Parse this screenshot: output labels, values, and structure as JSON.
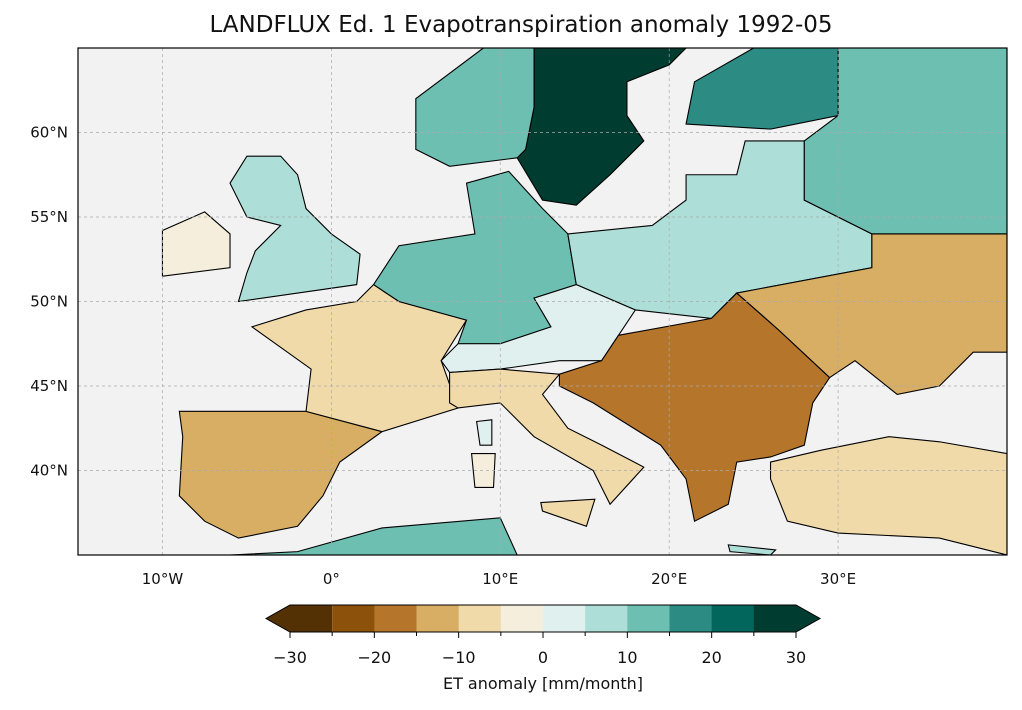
{
  "title": "LANDFLUX Ed. 1 Evapotranspiration anomaly 1992-05",
  "map": {
    "extent": {
      "lon": [
        -15,
        40
      ],
      "lat": [
        35,
        65
      ]
    },
    "x_ticks": [
      {
        "lon": -10,
        "label": "10°W"
      },
      {
        "lon": 0,
        "label": "0°"
      },
      {
        "lon": 10,
        "label": "10°E"
      },
      {
        "lon": 20,
        "label": "20°E"
      },
      {
        "lon": 30,
        "label": "30°E"
      }
    ],
    "y_ticks": [
      {
        "lat": 60,
        "label": "60°N"
      },
      {
        "lat": 55,
        "label": "55°N"
      },
      {
        "lat": 50,
        "label": "50°N"
      },
      {
        "lat": 45,
        "label": "45°N"
      },
      {
        "lat": 40,
        "label": "40°N"
      }
    ],
    "ocean_color": "#f2f2f2",
    "regions": [
      {
        "name": "iberia",
        "value": -15,
        "poly": [
          [
            -9,
            43.5
          ],
          [
            -1.5,
            43.5
          ],
          [
            3,
            42.3
          ],
          [
            0.5,
            40.5
          ],
          [
            -0.5,
            38.5
          ],
          [
            -2,
            36.7
          ],
          [
            -5.5,
            36
          ],
          [
            -7.5,
            37
          ],
          [
            -9,
            38.5
          ],
          [
            -8.8,
            42
          ]
        ]
      },
      {
        "name": "france",
        "value": -8,
        "poly": [
          [
            -1.5,
            43.5
          ],
          [
            3,
            42.3
          ],
          [
            7.5,
            43.7
          ],
          [
            6.5,
            46.5
          ],
          [
            8,
            48.9
          ],
          [
            4,
            50
          ],
          [
            2.5,
            51
          ],
          [
            1.5,
            50
          ],
          [
            -1.5,
            49.5
          ],
          [
            -4.7,
            48.5
          ],
          [
            -1.2,
            46
          ]
        ]
      },
      {
        "name": "britain",
        "value": 8,
        "poly": [
          [
            -5.5,
            50
          ],
          [
            1.5,
            51
          ],
          [
            1.7,
            52.8
          ],
          [
            0,
            54
          ],
          [
            -1.5,
            55.5
          ],
          [
            -2,
            57.5
          ],
          [
            -3,
            58.6
          ],
          [
            -5,
            58.6
          ],
          [
            -6,
            57
          ],
          [
            -5,
            55
          ],
          [
            -3,
            54.5
          ],
          [
            -4.5,
            53
          ],
          [
            -5,
            51.7
          ]
        ]
      },
      {
        "name": "ireland",
        "value": -4,
        "poly": [
          [
            -10,
            51.5
          ],
          [
            -6,
            52
          ],
          [
            -6,
            54
          ],
          [
            -7.5,
            55.3
          ],
          [
            -10,
            54.2
          ]
        ]
      },
      {
        "name": "central-europe",
        "value": 12,
        "poly": [
          [
            2.5,
            51
          ],
          [
            4,
            53.3
          ],
          [
            8.5,
            54
          ],
          [
            8,
            57
          ],
          [
            10.5,
            57.7
          ],
          [
            12.5,
            55.5
          ],
          [
            14,
            54
          ],
          [
            14.5,
            51
          ],
          [
            12,
            50.2
          ],
          [
            13,
            48.5
          ],
          [
            10,
            47.5
          ],
          [
            7.5,
            47.5
          ],
          [
            8,
            48.9
          ],
          [
            4,
            50
          ]
        ]
      },
      {
        "name": "poland-baltics",
        "value": 5,
        "poly": [
          [
            14,
            54
          ],
          [
            19,
            54.5
          ],
          [
            21,
            56
          ],
          [
            21,
            57.5
          ],
          [
            24,
            57.5
          ],
          [
            24.5,
            59.5
          ],
          [
            28,
            59.5
          ],
          [
            28,
            56
          ],
          [
            32,
            54
          ],
          [
            32,
            52
          ],
          [
            24,
            50.5
          ],
          [
            22.5,
            49
          ],
          [
            18,
            49.5
          ],
          [
            14.5,
            51
          ]
        ]
      },
      {
        "name": "alps",
        "value": 2,
        "poly": [
          [
            12,
            50.2
          ],
          [
            14.5,
            51
          ],
          [
            18,
            49.5
          ],
          [
            17,
            48
          ],
          [
            16,
            46.5
          ],
          [
            13.5,
            46.5
          ],
          [
            10,
            46
          ],
          [
            7,
            45.8
          ],
          [
            6.5,
            46.5
          ],
          [
            7.5,
            47.5
          ],
          [
            10,
            47.5
          ],
          [
            13,
            48.5
          ]
        ]
      },
      {
        "name": "italy",
        "value": -10,
        "poly": [
          [
            7,
            44
          ],
          [
            7.5,
            43.7
          ],
          [
            10,
            44
          ],
          [
            12,
            42
          ],
          [
            15.5,
            40
          ],
          [
            16.5,
            38
          ],
          [
            18.5,
            40.2
          ],
          [
            16,
            41.5
          ],
          [
            14,
            42.5
          ],
          [
            12.5,
            44.5
          ],
          [
            13.5,
            45.7
          ],
          [
            10,
            46
          ],
          [
            7,
            45.8
          ]
        ]
      },
      {
        "name": "balkans",
        "value": -20,
        "poly": [
          [
            13.5,
            45.7
          ],
          [
            16,
            46.5
          ],
          [
            17,
            48
          ],
          [
            22.5,
            49
          ],
          [
            24,
            50.5
          ],
          [
            26.5,
            48.3
          ],
          [
            29.5,
            45.5
          ],
          [
            28.5,
            44
          ],
          [
            28,
            41.5
          ],
          [
            26,
            40.8
          ],
          [
            24,
            40.5
          ],
          [
            23.5,
            38
          ],
          [
            21.5,
            37
          ],
          [
            21,
            39.5
          ],
          [
            19.5,
            41.5
          ],
          [
            15.5,
            44
          ],
          [
            13.5,
            45
          ]
        ]
      },
      {
        "name": "sweden",
        "value": 28,
        "poly": [
          [
            11,
            58.5
          ],
          [
            12.5,
            56
          ],
          [
            14.5,
            55.7
          ],
          [
            16.5,
            57.5
          ],
          [
            18.5,
            59.5
          ],
          [
            17.5,
            61
          ],
          [
            17.5,
            63
          ],
          [
            20,
            64
          ],
          [
            21,
            65
          ],
          [
            12,
            65
          ],
          [
            12,
            61.5
          ],
          [
            11.5,
            59
          ]
        ]
      },
      {
        "name": "norway",
        "value": 10,
        "poly": [
          [
            5,
            59
          ],
          [
            7,
            58
          ],
          [
            11,
            58.5
          ],
          [
            11.5,
            59
          ],
          [
            12,
            61.5
          ],
          [
            12,
            65
          ],
          [
            9,
            65
          ],
          [
            5,
            62
          ]
        ]
      },
      {
        "name": "finland",
        "value": 15,
        "poly": [
          [
            21,
            60.5
          ],
          [
            26,
            60.2
          ],
          [
            30,
            61
          ],
          [
            30,
            65
          ],
          [
            25,
            65
          ],
          [
            21.5,
            63
          ]
        ]
      },
      {
        "name": "russia-north",
        "value": 10,
        "poly": [
          [
            28,
            59.5
          ],
          [
            28,
            56
          ],
          [
            32,
            54
          ],
          [
            40,
            54
          ],
          [
            40,
            65
          ],
          [
            30,
            65
          ],
          [
            30,
            61
          ]
        ]
      },
      {
        "name": "ukraine",
        "value": -12,
        "poly": [
          [
            32,
            54
          ],
          [
            32,
            52
          ],
          [
            24,
            50.5
          ],
          [
            26.5,
            48.3
          ],
          [
            29.5,
            45.5
          ],
          [
            31,
            46.5
          ],
          [
            33.5,
            44.5
          ],
          [
            36,
            45
          ],
          [
            38,
            47
          ],
          [
            40,
            47
          ],
          [
            40,
            54
          ]
        ]
      },
      {
        "name": "turkey",
        "value": -8,
        "poly": [
          [
            26,
            40.5
          ],
          [
            29,
            41.2
          ],
          [
            33,
            42
          ],
          [
            36,
            41.7
          ],
          [
            40,
            41
          ],
          [
            40,
            35
          ],
          [
            36,
            36
          ],
          [
            30,
            36.3
          ],
          [
            27,
            37
          ],
          [
            26,
            39.5
          ]
        ]
      },
      {
        "name": "north-africa",
        "value": 12,
        "poly": [
          [
            -6,
            35
          ],
          [
            -2,
            35.2
          ],
          [
            3,
            36.6
          ],
          [
            10,
            37.2
          ],
          [
            11,
            35
          ]
        ]
      },
      {
        "name": "sardinia",
        "value": -3,
        "poly": [
          [
            8.3,
            41
          ],
          [
            9.7,
            41
          ],
          [
            9.6,
            39
          ],
          [
            8.5,
            39
          ]
        ]
      },
      {
        "name": "corsica",
        "value": 2,
        "poly": [
          [
            8.6,
            42.9
          ],
          [
            9.5,
            43
          ],
          [
            9.5,
            41.5
          ],
          [
            8.8,
            41.5
          ]
        ]
      },
      {
        "name": "sicily",
        "value": -6,
        "poly": [
          [
            12.4,
            38.1
          ],
          [
            15.6,
            38.3
          ],
          [
            15.1,
            36.7
          ],
          [
            12.5,
            37.6
          ]
        ]
      },
      {
        "name": "crete",
        "value": 5,
        "poly": [
          [
            23.5,
            35.6
          ],
          [
            26.3,
            35.3
          ],
          [
            26,
            35
          ],
          [
            23.6,
            35.2
          ]
        ]
      }
    ]
  },
  "colorbar": {
    "label": "ET anomaly [mm/month]",
    "boundaries": [
      -30,
      -25,
      -20,
      -15,
      -10,
      -5,
      0,
      5,
      10,
      15,
      20,
      25,
      30
    ],
    "colors": [
      "#543005",
      "#8c510a",
      "#b5752a",
      "#d7ae63",
      "#f0daa9",
      "#f5eedc",
      "#e0f0ee",
      "#addfd8",
      "#6dbfb2",
      "#2c8b83",
      "#02665c",
      "#003c30"
    ],
    "ticks": [
      {
        "v": -30,
        "label": "−30"
      },
      {
        "v": -20,
        "label": "−20"
      },
      {
        "v": -10,
        "label": "−10"
      },
      {
        "v": 0,
        "label": "0"
      },
      {
        "v": 10,
        "label": "10"
      },
      {
        "v": 20,
        "label": "20"
      },
      {
        "v": 30,
        "label": "30"
      }
    ]
  }
}
